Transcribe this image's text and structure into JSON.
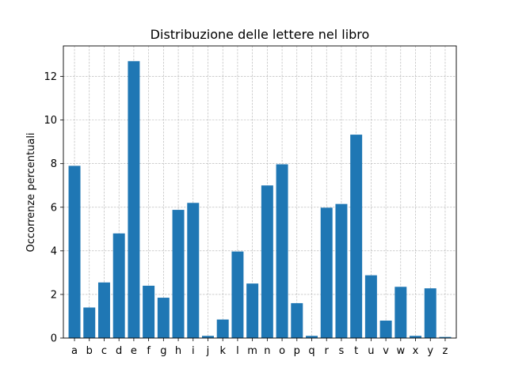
{
  "chart_data": {
    "type": "bar",
    "title": "Distribuzione delle lettere nel libro",
    "xlabel": "",
    "ylabel": "Occorrenze percentuali",
    "categories": [
      "a",
      "b",
      "c",
      "d",
      "e",
      "f",
      "g",
      "h",
      "i",
      "j",
      "k",
      "l",
      "m",
      "n",
      "o",
      "p",
      "q",
      "r",
      "s",
      "t",
      "u",
      "v",
      "w",
      "x",
      "y",
      "z"
    ],
    "values": [
      7.9,
      1.4,
      2.55,
      4.8,
      12.7,
      2.4,
      1.85,
      5.88,
      6.2,
      0.1,
      0.85,
      3.97,
      2.5,
      7.0,
      7.97,
      1.6,
      0.1,
      5.98,
      6.15,
      9.33,
      2.88,
      0.8,
      2.35,
      0.1,
      2.28,
      0.05
    ],
    "ylim": [
      0,
      13.4
    ],
    "yticks": [
      0,
      2,
      4,
      6,
      8,
      10,
      12
    ],
    "grid": true,
    "bar_color": "#1f77b4",
    "grid_color": "#b0b0b0"
  }
}
